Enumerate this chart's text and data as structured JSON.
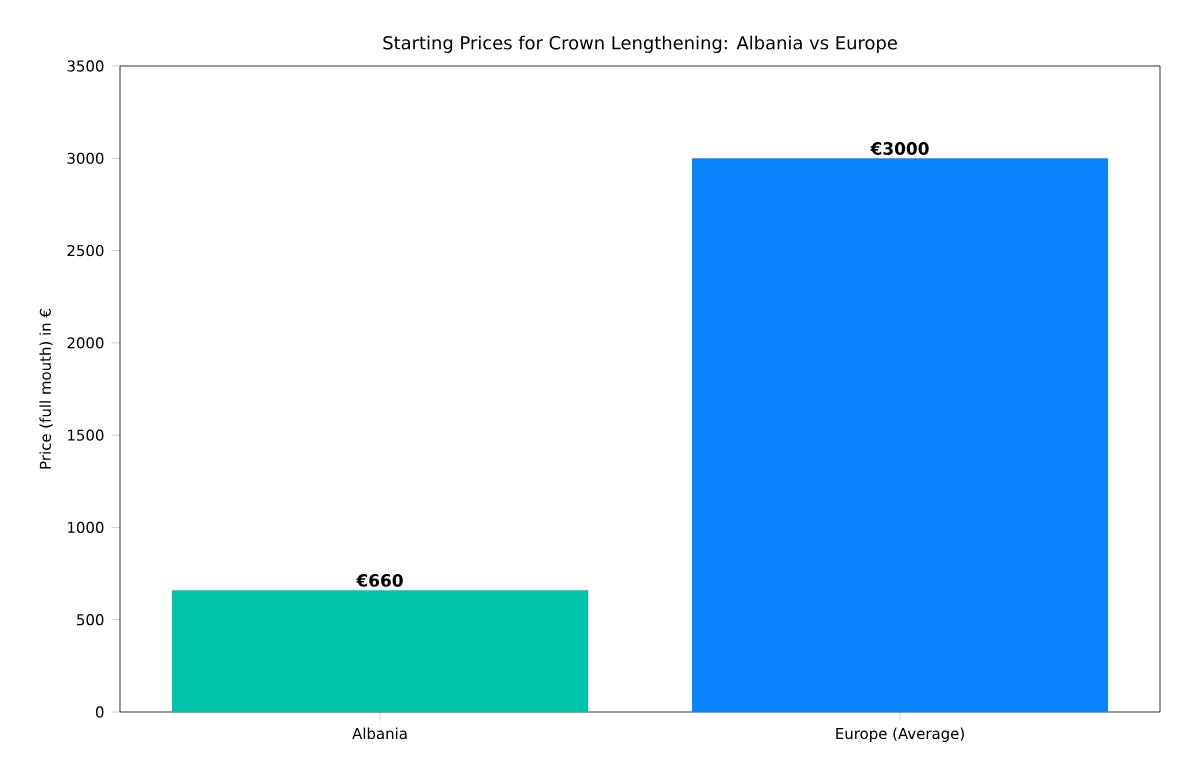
{
  "chart_data": {
    "type": "bar",
    "title": "Starting Prices for Crown Lengthening: Albania vs Europe",
    "ylabel": "Price (full mouth) in €",
    "categories": [
      "Albania",
      "Europe (Average)"
    ],
    "values": [
      660,
      3000
    ],
    "colors": [
      "#00c4aa",
      "#0a84ff"
    ],
    "value_labels": [
      "€660",
      "€3000"
    ],
    "ylim": [
      0,
      3500
    ],
    "yticks": [
      0,
      500,
      1000,
      1500,
      2000,
      2500,
      3000,
      3500
    ]
  }
}
